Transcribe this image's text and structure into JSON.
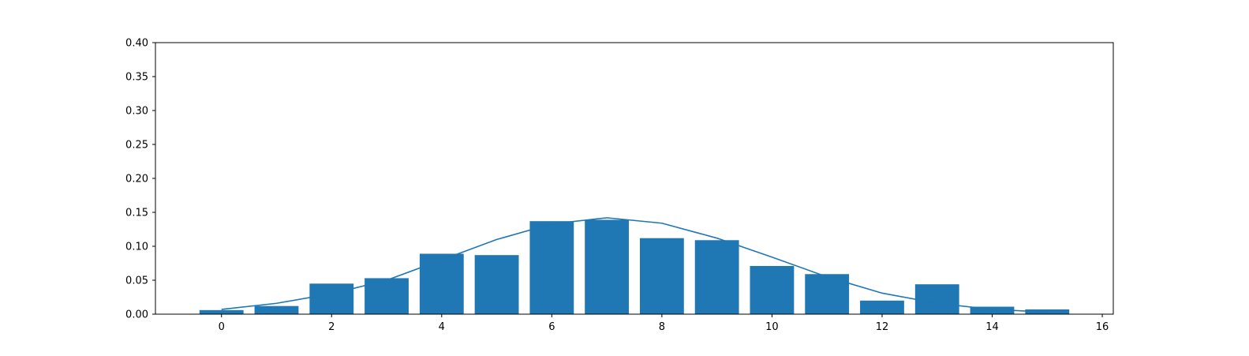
{
  "chart_data": {
    "type": "bar",
    "x": [
      0,
      1,
      2,
      3,
      4,
      5,
      6,
      7,
      8,
      9,
      10,
      11,
      12,
      13,
      14,
      15
    ],
    "series": [
      {
        "type": "bar",
        "values": [
          0.006,
          0.012,
          0.045,
          0.053,
          0.089,
          0.087,
          0.137,
          0.139,
          0.112,
          0.109,
          0.071,
          0.059,
          0.02,
          0.044,
          0.011,
          0.007
        ],
        "color": "#1f77b4"
      },
      {
        "type": "line",
        "values": [
          0.007,
          0.016,
          0.03,
          0.05,
          0.08,
          0.11,
          0.133,
          0.142,
          0.134,
          0.112,
          0.084,
          0.055,
          0.031,
          0.016,
          0.007,
          0.003
        ],
        "color": "#1f77b4"
      }
    ],
    "xlim": [
      -1.2,
      16.2
    ],
    "ylim": [
      0,
      0.4
    ],
    "xticks": [
      "0",
      "2",
      "4",
      "6",
      "8",
      "10",
      "12",
      "14",
      "16"
    ],
    "yticks": [
      "0.00",
      "0.05",
      "0.10",
      "0.15",
      "0.20",
      "0.25",
      "0.30",
      "0.35",
      "0.40"
    ],
    "grid": false,
    "title": "",
    "xlabel": "",
    "ylabel": ""
  }
}
